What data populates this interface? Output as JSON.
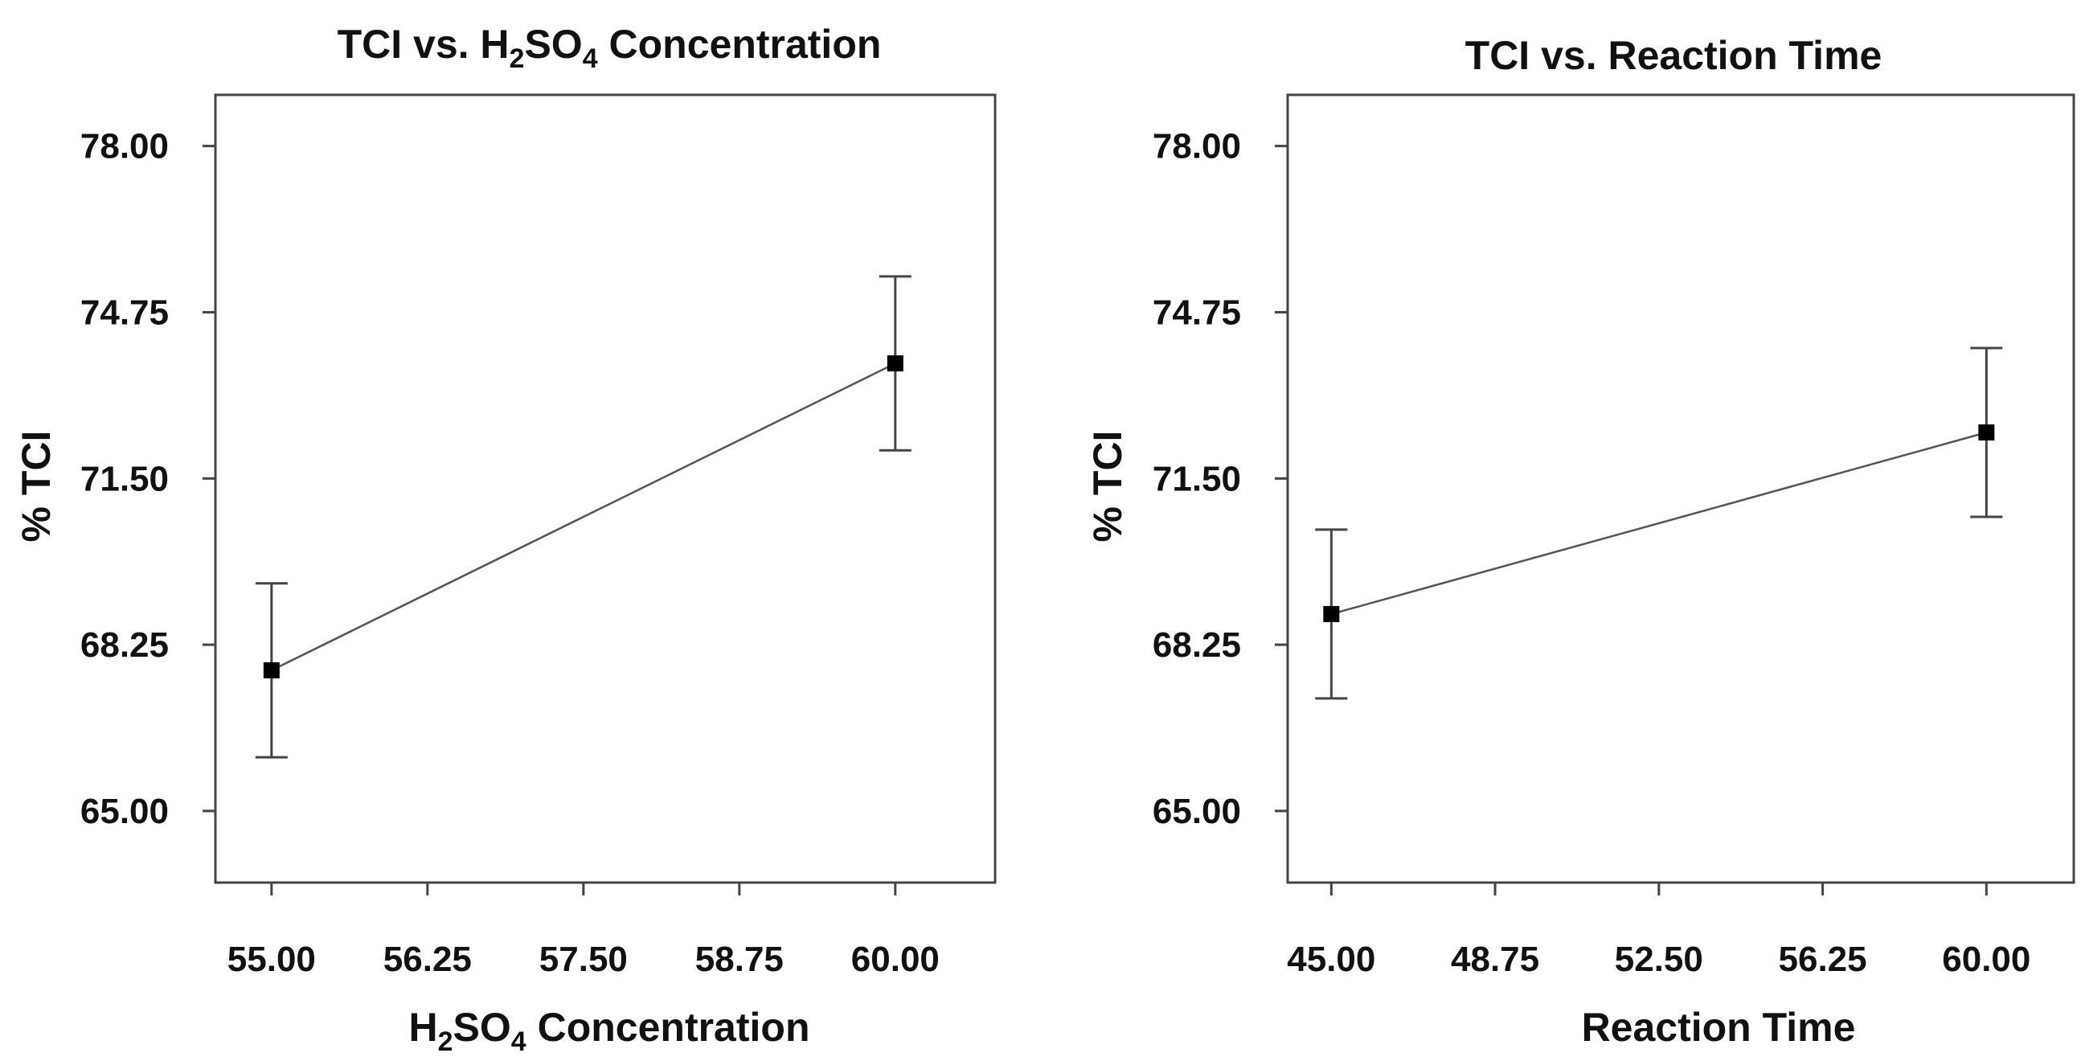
{
  "chart_data": [
    {
      "type": "line",
      "title": "TCI vs. H2SO4 Concentration",
      "title_parts": {
        "prefix": "TCI vs. H",
        "sub1": "2",
        "mid": "SO",
        "sub2": "4",
        "suffix": " Concentration"
      },
      "xlabel": "H2SO4 Concentration",
      "xlabel_parts": {
        "prefix": "H",
        "sub1": "2",
        "mid": "SO",
        "sub2": "4",
        "suffix": " Concentration"
      },
      "ylabel": "% TCI",
      "xlim": [
        54.55,
        60.8
      ],
      "ylim": [
        63.6,
        79.0
      ],
      "x_ticks": [
        55.0,
        56.25,
        57.5,
        58.75,
        60.0
      ],
      "x_tick_labels": [
        "55.00",
        "56.25",
        "57.50",
        "58.75",
        "60.00"
      ],
      "y_ticks": [
        65.0,
        68.25,
        71.5,
        74.75,
        78.0
      ],
      "y_tick_labels": [
        "65.00",
        "68.25",
        "71.50",
        "74.75",
        "78.00"
      ],
      "points": [
        {
          "x": 55.0,
          "y": 67.75,
          "err_low": 66.05,
          "err_high": 69.45
        },
        {
          "x": 60.0,
          "y": 73.75,
          "err_low": 72.05,
          "err_high": 75.45
        }
      ]
    },
    {
      "type": "line",
      "title": "TCI vs. Reaction Time",
      "xlabel": "Reaction Time",
      "ylabel": "% TCI",
      "xlim": [
        44.0,
        62.0
      ],
      "ylim": [
        63.6,
        79.0
      ],
      "x_ticks": [
        45.0,
        48.75,
        52.5,
        56.25,
        60.0
      ],
      "x_tick_labels": [
        "45.00",
        "48.75",
        "52.50",
        "56.25",
        "60.00"
      ],
      "y_ticks": [
        65.0,
        68.25,
        71.5,
        74.75,
        78.0
      ],
      "y_tick_labels": [
        "65.00",
        "68.25",
        "71.50",
        "74.75",
        "78.00"
      ],
      "points": [
        {
          "x": 45.0,
          "y": 68.85,
          "err_low": 67.2,
          "err_high": 70.5
        },
        {
          "x": 60.0,
          "y": 72.4,
          "err_low": 70.75,
          "err_high": 74.05
        }
      ]
    }
  ]
}
